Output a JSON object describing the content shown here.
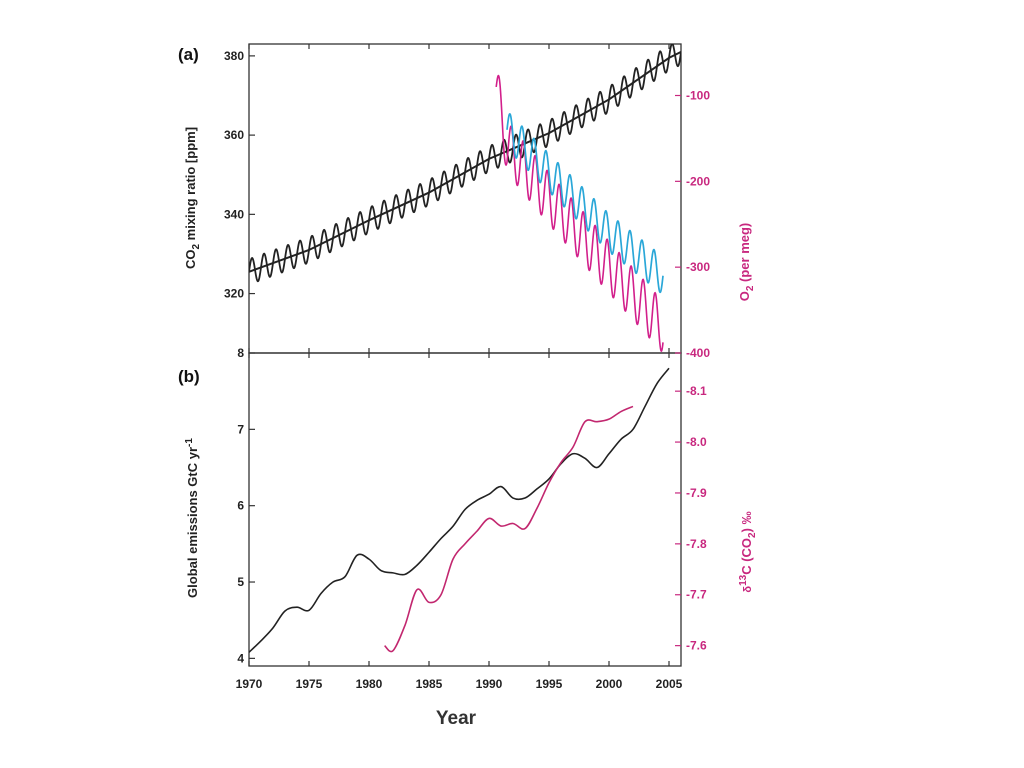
{
  "colors": {
    "co2_line": "#222222",
    "o2_observed": "#d21f8b",
    "o2_fit": "#2aa7d8",
    "emissions_line": "#222222",
    "d13c_line": "#c2276f"
  },
  "chart_data": [
    {
      "panel": "(a)",
      "type": "line",
      "x_range": [
        1970,
        2006
      ],
      "left_axis": {
        "label_main": "CO",
        "label_sub": "2",
        "label_rest": " mixing ratio [ppm]",
        "ylim": [
          305,
          383
        ],
        "ticks": [
          320,
          340,
          360,
          380
        ]
      },
      "right_axis": {
        "label_main": "O",
        "label_sub": "2",
        "label_rest": " (per meg)",
        "ylim": [
          -400,
          -40
        ],
        "ticks": [
          -100,
          -200,
          -300,
          -400
        ],
        "tick_labels": [
          "-100",
          "-200",
          "-300",
          "-400"
        ]
      },
      "series": [
        {
          "axis": "left",
          "kind": "seasonal",
          "x": [
            1970,
            1975,
            1980,
            1985,
            1990,
            1995,
            2000,
            2005,
            2006
          ],
          "y": [
            325.5,
            331,
            338.5,
            345.5,
            354,
            360.5,
            369,
            379.5,
            381
          ],
          "amplitude": 3.2
        },
        {
          "axis": "left",
          "kind": "trend",
          "x": [
            1970,
            1975,
            1980,
            1985,
            1990,
            1995,
            2000,
            2005,
            2006
          ],
          "y": [
            325.5,
            331,
            338.5,
            345.5,
            354,
            360.5,
            369,
            379.5,
            381
          ]
        },
        {
          "axis": "right",
          "kind": "seasonal",
          "x": [
            1990.6,
            1991.5,
            1995,
            2000,
            2004.5
          ],
          "y": [
            -90,
            -160,
            -220,
            -300,
            -370
          ],
          "amplitude": 30
        },
        {
          "axis": "right",
          "kind": "seasonal",
          "x": [
            1991.5,
            1995,
            2000,
            2004.5
          ],
          "y": [
            -140,
            -190,
            -260,
            -310
          ],
          "amplitude": 22
        }
      ]
    },
    {
      "panel": "(b)",
      "type": "line",
      "xlabel": "Year",
      "x_ticks": [
        1970,
        1975,
        1980,
        1985,
        1990,
        1995,
        2000,
        2005
      ],
      "x_range": [
        1970,
        2006
      ],
      "left_axis": {
        "label_main": "Global emissions GtC yr",
        "label_sup": "-1",
        "ylim": [
          3.9,
          8.0
        ],
        "ticks": [
          4,
          5,
          6,
          7,
          8
        ]
      },
      "right_axis": {
        "label_delta": "δ",
        "label_sup": "13",
        "label_main": "C (CO",
        "label_sub": "2",
        "label_rest": ") ‰",
        "ylim": [
          -7.56,
          -8.175
        ],
        "ticks": [
          -8.1,
          -8.0,
          -7.9,
          -7.8,
          -7.7,
          -7.6
        ],
        "tick_labels": [
          "-8.1",
          "-8.0",
          "-7.9",
          "-7.8",
          "-7.7",
          "-7.6"
        ]
      },
      "series": [
        {
          "axis": "left",
          "x": [
            1970,
            1971,
            1972,
            1973,
            1974,
            1975,
            1976,
            1977,
            1978,
            1979,
            1980,
            1981,
            1982,
            1983,
            1984,
            1985,
            1986,
            1987,
            1988,
            1989,
            1990,
            1991,
            1992,
            1993,
            1994,
            1995,
            1996,
            1997,
            1998,
            1999,
            2000,
            2001,
            2002,
            2003,
            2004,
            2005
          ],
          "y": [
            4.08,
            4.23,
            4.4,
            4.62,
            4.67,
            4.63,
            4.85,
            5.0,
            5.07,
            5.35,
            5.3,
            5.15,
            5.12,
            5.1,
            5.22,
            5.39,
            5.57,
            5.73,
            5.95,
            6.07,
            6.15,
            6.25,
            6.1,
            6.1,
            6.22,
            6.35,
            6.55,
            6.68,
            6.62,
            6.5,
            6.68,
            6.87,
            7.0,
            7.3,
            7.6,
            7.8
          ]
        },
        {
          "axis": "right",
          "x": [
            1981.3,
            1982,
            1983,
            1984,
            1985,
            1986,
            1987,
            1988,
            1989,
            1990,
            1991,
            1992,
            1993,
            1994,
            1995,
            1996,
            1997,
            1998,
            1999,
            2000,
            2001,
            2002
          ],
          "y": [
            -7.6,
            -7.59,
            -7.64,
            -7.71,
            -7.685,
            -7.7,
            -7.77,
            -7.8,
            -7.825,
            -7.85,
            -7.835,
            -7.84,
            -7.83,
            -7.87,
            -7.92,
            -7.96,
            -7.99,
            -8.04,
            -8.04,
            -8.045,
            -8.06,
            -8.07
          ]
        }
      ]
    }
  ]
}
